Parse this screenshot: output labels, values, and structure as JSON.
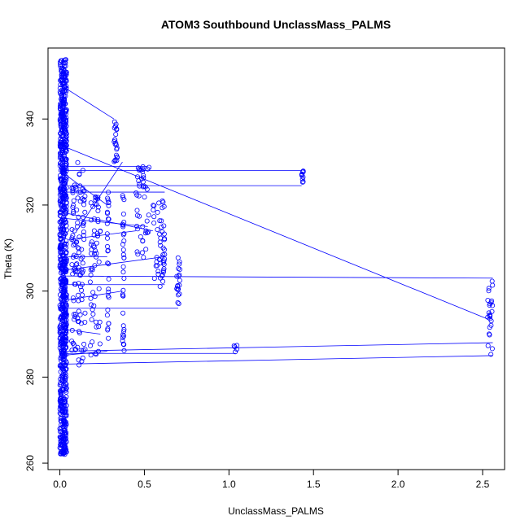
{
  "chart_data": {
    "type": "scatter",
    "title": "ATOM3 Southbound UnclassMass_PALMS",
    "xlabel": "UnclassMass_PALMS",
    "ylabel": "Theta (K)",
    "xlim": [
      -0.07,
      2.63
    ],
    "ylim": [
      258.5,
      356.5
    ],
    "x_ticks": [
      0.0,
      0.5,
      1.0,
      1.5,
      2.0,
      2.5
    ],
    "x_tick_labels": [
      "0.0",
      "0.5",
      "1.0",
      "1.5",
      "2.0",
      "2.5"
    ],
    "y_ticks": [
      260,
      280,
      300,
      320,
      340
    ],
    "y_tick_labels": [
      "260",
      "280",
      "300",
      "320",
      "340"
    ],
    "series_color": "#0000ff",
    "clusters": [
      {
        "name": "near-zero column",
        "x": [
          0.0,
          0.04
        ],
        "y": [
          262,
          354
        ],
        "count": 900
      },
      {
        "name": "x~0.07-0.15",
        "x": [
          0.07,
          0.15
        ],
        "y": [
          282,
          330
        ],
        "count": 120
      },
      {
        "name": "x~0.18-0.24",
        "x": [
          0.18,
          0.24
        ],
        "y": [
          285,
          322
        ],
        "count": 60
      },
      {
        "name": "x~0.28",
        "x": [
          0.28,
          0.29
        ],
        "y": [
          287,
          323
        ],
        "count": 30
      },
      {
        "name": "x~0.33",
        "x": [
          0.32,
          0.34
        ],
        "y": [
          330,
          340
        ],
        "count": 22
      },
      {
        "name": "x~0.37",
        "x": [
          0.37,
          0.38
        ],
        "y": [
          286,
          323
        ],
        "count": 35
      },
      {
        "name": "x~0.45-0.53",
        "x": [
          0.45,
          0.53
        ],
        "y": [
          306,
          329
        ],
        "count": 45
      },
      {
        "name": "x~0.55-0.62",
        "x": [
          0.55,
          0.62
        ],
        "y": [
          301,
          323
        ],
        "count": 50
      },
      {
        "name": "x~0.70",
        "x": [
          0.69,
          0.71
        ],
        "y": [
          296,
          308
        ],
        "count": 20
      },
      {
        "name": "x~1.04",
        "x": [
          1.03,
          1.05
        ],
        "y": [
          285.5,
          287.5
        ],
        "count": 5
      },
      {
        "name": "x~1.43",
        "x": [
          1.43,
          1.44
        ],
        "y": [
          325,
          328
        ],
        "count": 10
      },
      {
        "name": "x~2.53-2.56",
        "x": [
          2.53,
          2.56
        ],
        "y": [
          285,
          303
        ],
        "count": 25
      }
    ],
    "connecting_lines": [
      {
        "x": [
          0.0,
          0.32
        ],
        "y": [
          348,
          340
        ]
      },
      {
        "x": [
          0.0,
          2.53
        ],
        "y": [
          334,
          293.5
        ]
      },
      {
        "x": [
          0.0,
          1.43
        ],
        "y": [
          328,
          328
        ]
      },
      {
        "x": [
          0.0,
          1.43
        ],
        "y": [
          324.5,
          324.5
        ]
      },
      {
        "x": [
          0.0,
          0.52
        ],
        "y": [
          329,
          329
        ]
      },
      {
        "x": [
          0.0,
          2.56
        ],
        "y": [
          303.5,
          303
        ]
      },
      {
        "x": [
          0.0,
          2.56
        ],
        "y": [
          283,
          285
        ]
      },
      {
        "x": [
          0.0,
          2.56
        ],
        "y": [
          286,
          288
        ]
      },
      {
        "x": [
          0.0,
          1.04
        ],
        "y": [
          285.5,
          285.5
        ]
      },
      {
        "x": [
          0.0,
          0.62
        ],
        "y": [
          301.5,
          301.5
        ]
      },
      {
        "x": [
          0.0,
          0.7
        ],
        "y": [
          296,
          296
        ]
      },
      {
        "x": [
          0.0,
          0.62
        ],
        "y": [
          323,
          323
        ]
      },
      {
        "x": [
          0.05,
          0.55
        ],
        "y": [
          318,
          314
        ]
      },
      {
        "x": [
          0.0,
          0.52
        ],
        "y": [
          317,
          315
        ]
      },
      {
        "x": [
          0.05,
          0.28
        ],
        "y": [
          308,
          308
        ]
      },
      {
        "x": [
          0.05,
          0.62
        ],
        "y": [
          305,
          308
        ]
      },
      {
        "x": [
          0.05,
          0.45
        ],
        "y": [
          312,
          314
        ]
      },
      {
        "x": [
          0.05,
          0.37
        ],
        "y": [
          298,
          300
        ]
      },
      {
        "x": [
          0.05,
          0.24
        ],
        "y": [
          291,
          290
        ]
      },
      {
        "x": [
          0.0,
          0.28
        ],
        "y": [
          285,
          286
        ]
      },
      {
        "x": [
          0.1,
          0.37
        ],
        "y": [
          314,
          330
        ]
      },
      {
        "x": [
          0.0,
          0.28
        ],
        "y": [
          328,
          320
        ]
      }
    ]
  }
}
